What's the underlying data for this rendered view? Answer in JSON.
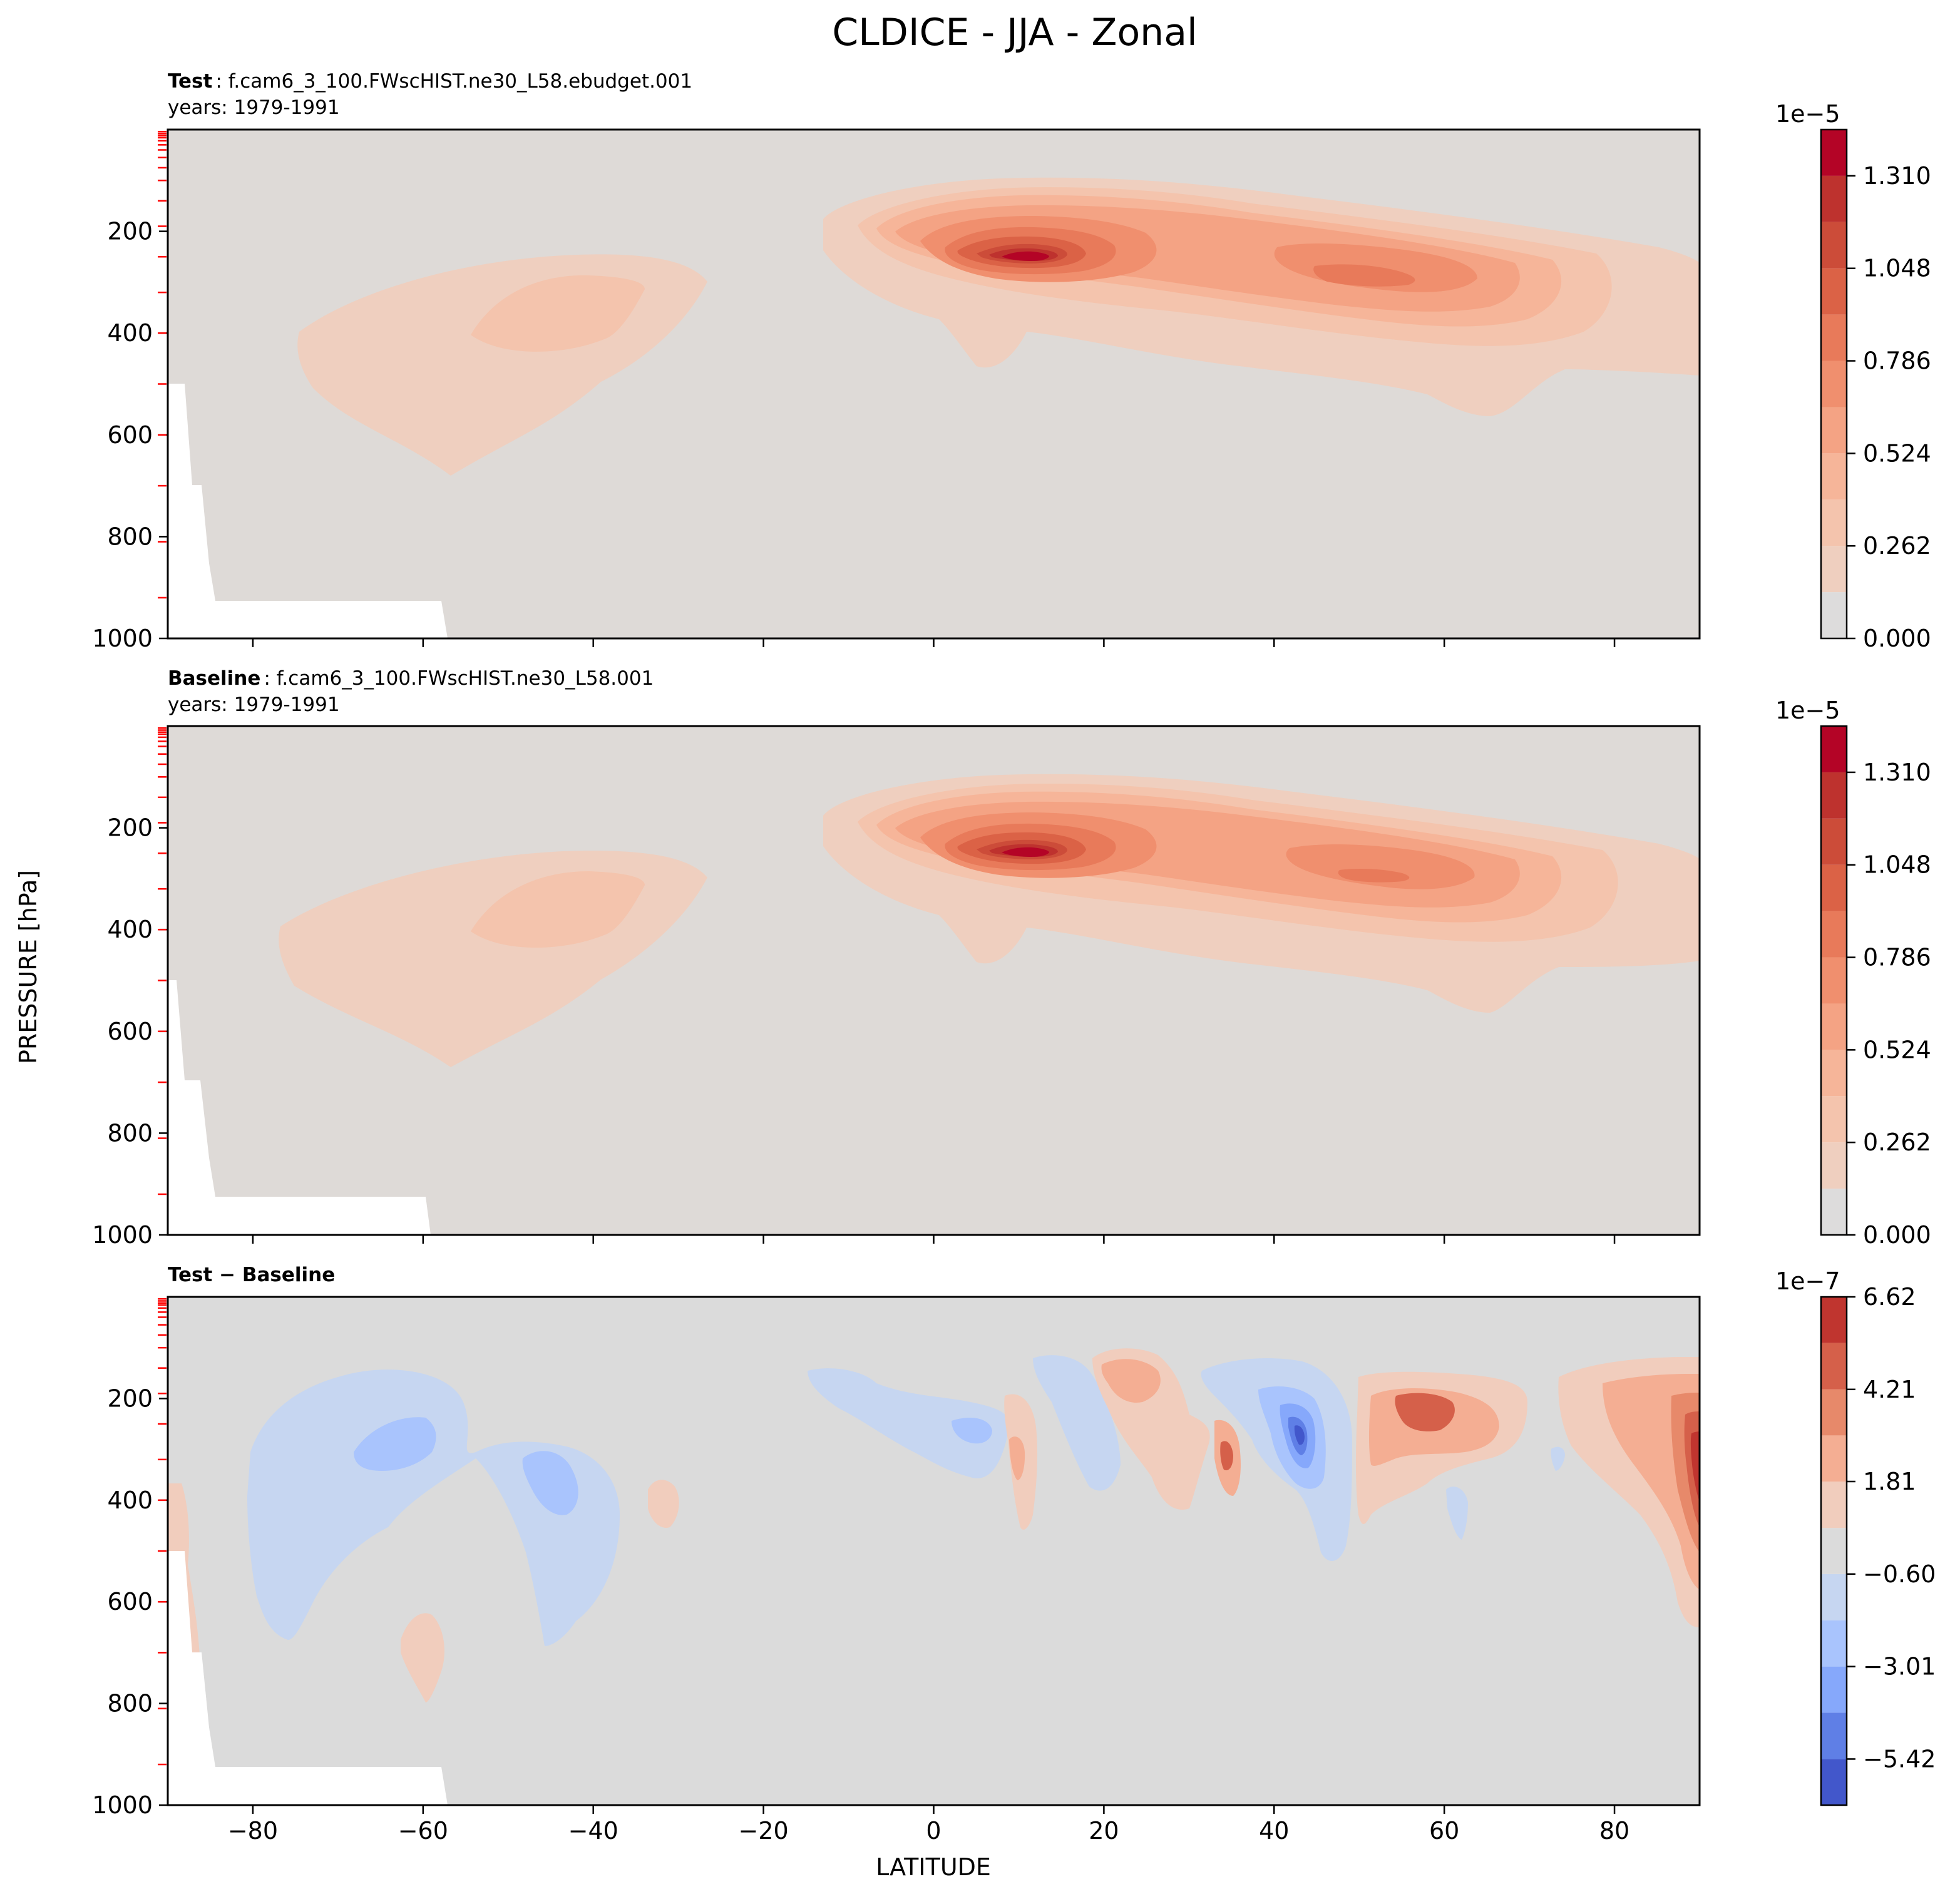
{
  "suptitle": "CLDICE - JJA - Zonal",
  "chart_data": [
    {
      "type": "contour",
      "panel_label": "Test",
      "case_name": ": f.cam6_3_100.FWscHIST.ne30_L58.ebudget.001",
      "years": "years: 1979-1991",
      "xlabel": "LATITUDE",
      "ylabel": "PRESSURE [hPa]",
      "xlim": [
        -90,
        90
      ],
      "ylim": [
        1000,
        0
      ],
      "xticks": [
        -80,
        -60,
        -40,
        -20,
        0,
        20,
        40,
        60,
        80
      ],
      "yticks": [
        200,
        400,
        600,
        800,
        1000
      ],
      "colorbar": {
        "cmap": "coolwarm",
        "offset_label": "1e−5",
        "levels": [
          0,
          0.131,
          0.262,
          0.393,
          0.524,
          0.655,
          0.786,
          0.917,
          1.048,
          1.179,
          1.31,
          1.441
        ],
        "tick_values": [
          0,
          0.262,
          0.524,
          0.786,
          1.048,
          1.31
        ],
        "tick_labels": [
          "0.000",
          "0.262",
          "0.524",
          "0.786",
          "1.048",
          "1.310"
        ],
        "colors": [
          "#dddcdc",
          "#efcfbf",
          "#f4c4ad",
          "#f6b599",
          "#f4a384",
          "#f08f6e",
          "#e87a5a",
          "#db6246",
          "#cc4c39",
          "#be322e",
          "#b40426"
        ]
      },
      "features": [
        {
          "name": "Southern hemisphere mid-troposphere maximum",
          "lat_center": -45,
          "p_center_hPa": 350,
          "peak_value": 0.26
        },
        {
          "name": "Tropical upper-tropospheric maximum",
          "lat_center": 10,
          "p_center_hPa": 250,
          "peak_value": 1.4
        },
        {
          "name": "Northern mid-latitude maximum",
          "lat_center": 52,
          "p_center_hPa": 300,
          "peak_value": 0.9
        }
      ]
    },
    {
      "type": "contour",
      "panel_label": "Baseline",
      "case_name": ": f.cam6_3_100.FWscHIST.ne30_L58.001",
      "years": "years: 1979-1991",
      "xlabel": "LATITUDE",
      "ylabel": "PRESSURE [hPa]",
      "xlim": [
        -90,
        90
      ],
      "ylim": [
        1000,
        0
      ],
      "xticks": [
        -80,
        -60,
        -40,
        -20,
        0,
        20,
        40,
        60,
        80
      ],
      "yticks": [
        200,
        400,
        600,
        800,
        1000
      ],
      "colorbar": {
        "cmap": "coolwarm",
        "offset_label": "1e−5",
        "levels": [
          0,
          0.131,
          0.262,
          0.393,
          0.524,
          0.655,
          0.786,
          0.917,
          1.048,
          1.179,
          1.31,
          1.441
        ],
        "tick_values": [
          0,
          0.262,
          0.524,
          0.786,
          1.048,
          1.31
        ],
        "tick_labels": [
          "0.000",
          "0.262",
          "0.524",
          "0.786",
          "1.048",
          "1.310"
        ],
        "colors": [
          "#dddcdc",
          "#efcfbf",
          "#f4c4ad",
          "#f6b599",
          "#f4a384",
          "#f08f6e",
          "#e87a5a",
          "#db6246",
          "#cc4c39",
          "#be322e",
          "#b40426"
        ]
      },
      "features": [
        {
          "name": "Southern hemisphere mid-troposphere maximum",
          "lat_center": -45,
          "p_center_hPa": 350,
          "peak_value": 0.26
        },
        {
          "name": "Tropical upper-tropospheric maximum",
          "lat_center": 10,
          "p_center_hPa": 250,
          "peak_value": 1.4
        },
        {
          "name": "Northern mid-latitude maximum",
          "lat_center": 52,
          "p_center_hPa": 300,
          "peak_value": 0.9
        }
      ]
    },
    {
      "type": "contour",
      "panel_label": "Test − Baseline",
      "xlabel": "LATITUDE",
      "ylabel": "PRESSURE [hPa]",
      "xlim": [
        -90,
        90
      ],
      "ylim": [
        1000,
        0
      ],
      "xticks": [
        -80,
        -60,
        -40,
        -20,
        0,
        20,
        40,
        60,
        80
      ],
      "yticks": [
        200,
        400,
        600,
        800,
        1000
      ],
      "colorbar": {
        "cmap": "coolwarm",
        "offset_label": "1e−7",
        "levels": [
          -6.62,
          -5.42,
          -4.21,
          -3.01,
          -1.81,
          -0.6,
          0.6,
          1.81,
          3.01,
          4.21,
          5.42,
          6.62
        ],
        "tick_values": [
          -5.42,
          -3.01,
          -0.6,
          1.81,
          4.21,
          6.62
        ],
        "tick_labels": [
          "−5.42",
          "−3.01",
          "−0.60",
          "1.81",
          "4.21",
          "6.62"
        ],
        "colors": [
          "#4257cb",
          "#5f7fe6",
          "#86a8fb",
          "#a9c4fd",
          "#c6d6f1",
          "#dbdbdb",
          "#f1cdbd",
          "#f4ae93",
          "#e7896a",
          "#d5604a",
          "#c0352f"
        ]
      },
      "features": [
        {
          "name": "SH negative lobe",
          "lat_center": -62,
          "p_center_hPa": 300,
          "peak_value": -2.5
        },
        {
          "name": "SH negative lobe",
          "lat_center": -43,
          "p_center_hPa": 420,
          "peak_value": -2.5
        },
        {
          "name": "Positive blob",
          "lat_center": -60,
          "p_center_hPa": 720,
          "peak_value": 1.2
        },
        {
          "name": "Positive blob",
          "lat_center": -32,
          "p_center_hPa": 410,
          "peak_value": 1.2
        },
        {
          "name": "Negative band",
          "lat_center": 2,
          "p_center_hPa": 250,
          "peak_value": -1.5
        },
        {
          "name": "Positive column",
          "lat_center": 35,
          "p_center_hPa": 310,
          "peak_value": 4.5
        },
        {
          "name": "Negative core",
          "lat_center": 44,
          "p_center_hPa": 270,
          "peak_value": -5.5
        },
        {
          "name": "Positive maximum",
          "lat_center": 57,
          "p_center_hPa": 250,
          "peak_value": 4.0
        },
        {
          "name": "Polar positive maximum",
          "lat_center": 89,
          "p_center_hPa": 330,
          "peak_value": 6.5
        }
      ]
    }
  ]
}
